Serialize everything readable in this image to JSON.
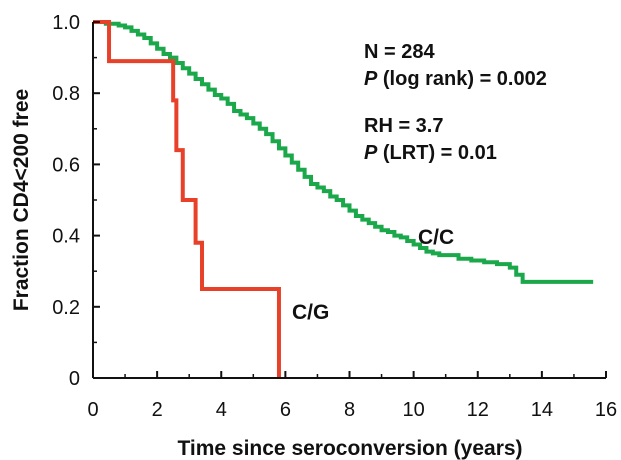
{
  "chart_data": {
    "type": "line",
    "xlabel": "Time since seroconversion (years)",
    "ylabel": "Fraction CD4<200  free",
    "xlim": [
      0,
      16
    ],
    "ylim": [
      0,
      1.0
    ],
    "xticks": [
      0,
      2,
      4,
      6,
      8,
      10,
      12,
      14,
      16
    ],
    "yticks": [
      0,
      0.2,
      0.4,
      0.6,
      0.8,
      1.0
    ],
    "ytick_labels": [
      "0",
      "0.2",
      "0.4",
      "0.6",
      "0.8",
      "1.0"
    ],
    "grid": false,
    "annotations": {
      "n": "N = 284",
      "p_log_rank_prefix": "P",
      "p_log_rank_rest": " (log rank) = 0.002",
      "rh": "RH = 3.7",
      "p_lrt_prefix": "P",
      "p_lrt_rest": " (LRT) = 0.01"
    },
    "series": [
      {
        "name": "C/C",
        "color": "#1aa84a",
        "step": true,
        "points": [
          [
            0,
            1.0
          ],
          [
            0.4,
            0.995
          ],
          [
            0.8,
            0.99
          ],
          [
            1.0,
            0.985
          ],
          [
            1.2,
            0.975
          ],
          [
            1.4,
            0.965
          ],
          [
            1.6,
            0.955
          ],
          [
            1.8,
            0.94
          ],
          [
            2.0,
            0.925
          ],
          [
            2.2,
            0.91
          ],
          [
            2.4,
            0.9
          ],
          [
            2.6,
            0.885
          ],
          [
            2.8,
            0.87
          ],
          [
            3.0,
            0.855
          ],
          [
            3.2,
            0.84
          ],
          [
            3.4,
            0.825
          ],
          [
            3.6,
            0.81
          ],
          [
            3.8,
            0.795
          ],
          [
            4.0,
            0.785
          ],
          [
            4.2,
            0.77
          ],
          [
            4.4,
            0.75
          ],
          [
            4.6,
            0.74
          ],
          [
            4.8,
            0.73
          ],
          [
            5.0,
            0.715
          ],
          [
            5.2,
            0.7
          ],
          [
            5.4,
            0.685
          ],
          [
            5.6,
            0.665
          ],
          [
            5.8,
            0.645
          ],
          [
            6.0,
            0.625
          ],
          [
            6.2,
            0.605
          ],
          [
            6.4,
            0.585
          ],
          [
            6.6,
            0.565
          ],
          [
            6.8,
            0.545
          ],
          [
            7.0,
            0.535
          ],
          [
            7.2,
            0.525
          ],
          [
            7.4,
            0.51
          ],
          [
            7.6,
            0.5
          ],
          [
            7.8,
            0.485
          ],
          [
            8.0,
            0.47
          ],
          [
            8.2,
            0.455
          ],
          [
            8.4,
            0.445
          ],
          [
            8.6,
            0.435
          ],
          [
            8.8,
            0.425
          ],
          [
            9.0,
            0.415
          ],
          [
            9.2,
            0.41
          ],
          [
            9.4,
            0.4
          ],
          [
            9.6,
            0.395
          ],
          [
            9.8,
            0.385
          ],
          [
            10.0,
            0.375
          ],
          [
            10.2,
            0.365
          ],
          [
            10.4,
            0.355
          ],
          [
            10.6,
            0.35
          ],
          [
            10.8,
            0.345
          ],
          [
            11.0,
            0.345
          ],
          [
            11.4,
            0.335
          ],
          [
            11.8,
            0.33
          ],
          [
            12.2,
            0.325
          ],
          [
            12.6,
            0.32
          ],
          [
            13.0,
            0.31
          ],
          [
            13.2,
            0.29
          ],
          [
            13.4,
            0.27
          ],
          [
            14.0,
            0.27
          ],
          [
            15.0,
            0.27
          ],
          [
            15.6,
            0.27
          ]
        ]
      },
      {
        "name": "C/G",
        "color": "#e8412a",
        "step": true,
        "points": [
          [
            0,
            1.0
          ],
          [
            0.5,
            1.0
          ],
          [
            0.5,
            0.89
          ],
          [
            2.5,
            0.89
          ],
          [
            2.5,
            0.78
          ],
          [
            2.6,
            0.78
          ],
          [
            2.6,
            0.64
          ],
          [
            2.8,
            0.64
          ],
          [
            2.8,
            0.5
          ],
          [
            3.2,
            0.5
          ],
          [
            3.2,
            0.38
          ],
          [
            3.4,
            0.38
          ],
          [
            3.4,
            0.25
          ],
          [
            5.8,
            0.25
          ],
          [
            5.8,
            0.0
          ]
        ]
      }
    ]
  }
}
